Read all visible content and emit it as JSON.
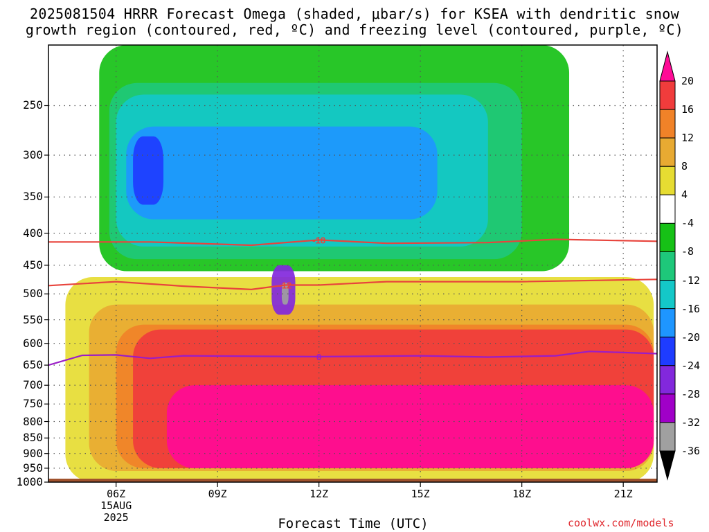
{
  "title": {
    "line1": "2025081504 HRRR Forecast Omega (shaded, μbar/s) for KSEA with dendritic snow",
    "line2": "growth region (contoured, red, ºC) and freezing level (contoured, purple, ºC)"
  },
  "xlabel": "Forecast Time (UTC)",
  "credit": "coolwx.com/models",
  "chart_data": {
    "type": "heatmap",
    "title": "2025081504 HRRR Forecast Omega (shaded, μbar/s) for KSEA with dendritic snow growth region (contoured, red, ºC) and freezing level (contoured, purple, ºC)",
    "xlabel": "Forecast Time (UTC)",
    "ylabel": "",
    "y_scale": "log-pressure",
    "y_ticks": [
      250,
      300,
      350,
      400,
      450,
      500,
      550,
      600,
      650,
      700,
      750,
      800,
      850,
      900,
      950,
      1000
    ],
    "y_range_hpa": [
      1000,
      200
    ],
    "x_ticks": [
      "06Z",
      "09Z",
      "12Z",
      "15Z",
      "18Z",
      "21Z"
    ],
    "x_tick_hours": [
      6,
      9,
      12,
      15,
      18,
      21
    ],
    "x_range_hours": [
      4,
      22
    ],
    "date_label": [
      "15AUG",
      "2025"
    ],
    "colorbar_ticks": [
      20,
      16,
      12,
      8,
      4,
      -4,
      -8,
      -12,
      -16,
      -20,
      -24,
      -28,
      -32,
      -36
    ],
    "colorbar_colors": [
      "#ff0a96",
      "#f03c3c",
      "#f08228",
      "#e8aa32",
      "#e6dc32",
      "#ffffff",
      "#16c116",
      "#1ec87a",
      "#14c8c8",
      "#1e96ff",
      "#1e3cff",
      "#8228dc",
      "#a000c8",
      "#a0a0a0",
      "#000000"
    ],
    "contours": [
      {
        "label": "-18",
        "color": "#e8443c",
        "points": [
          [
            4,
            413
          ],
          [
            7,
            413
          ],
          [
            10,
            418
          ],
          [
            11,
            414
          ],
          [
            12,
            410
          ],
          [
            14,
            415
          ],
          [
            17,
            414
          ],
          [
            19,
            409
          ],
          [
            22,
            412
          ]
        ]
      },
      {
        "label": "-12",
        "color": "#e8443c",
        "points": [
          [
            4,
            485
          ],
          [
            6,
            478
          ],
          [
            8,
            486
          ],
          [
            10,
            492
          ],
          [
            11,
            484
          ],
          [
            12,
            484
          ],
          [
            14,
            478
          ],
          [
            18,
            478
          ],
          [
            22,
            474
          ]
        ]
      },
      {
        "label": "0",
        "color": "#9a1cc8",
        "points": [
          [
            4,
            650
          ],
          [
            5,
            627
          ],
          [
            6,
            626
          ],
          [
            7,
            634
          ],
          [
            8,
            628
          ],
          [
            12,
            630
          ],
          [
            15,
            628
          ],
          [
            17,
            631
          ],
          [
            19,
            628
          ],
          [
            20,
            618
          ],
          [
            22,
            623
          ]
        ]
      }
    ],
    "shaded_regions": [
      {
        "level": 4,
        "hour_range": [
          4.5,
          21.9
        ],
        "p_range": [
          1000,
          470
        ]
      },
      {
        "level": 8,
        "hour_range": [
          5.2,
          21.9
        ],
        "p_range": [
          960,
          520
        ]
      },
      {
        "level": 12,
        "hour_range": [
          6.0,
          21.9
        ],
        "p_range": [
          950,
          560
        ]
      },
      {
        "level": 16,
        "hour_range": [
          6.5,
          21.9
        ],
        "p_range": [
          950,
          570
        ]
      },
      {
        "level": 20,
        "hour_range": [
          7.5,
          21.9
        ],
        "p_range": [
          950,
          700
        ]
      },
      {
        "level": -4,
        "hour_range": [
          5.5,
          19.4
        ],
        "p_range": [
          460,
          200
        ]
      },
      {
        "level": -8,
        "hour_range": [
          5.8,
          18.0
        ],
        "p_range": [
          440,
          230
        ]
      },
      {
        "level": -12,
        "hour_range": [
          6.0,
          17.0
        ],
        "p_range": [
          420,
          240
        ]
      },
      {
        "level": -16,
        "hour_range": [
          6.3,
          15.5
        ],
        "p_range": [
          380,
          270
        ]
      },
      {
        "level": -20,
        "hour_range": [
          6.5,
          7.4
        ],
        "p_range": [
          360,
          280
        ]
      },
      {
        "level": -24,
        "hour_range": [
          10.6,
          11.3
        ],
        "p_range": [
          540,
          450
        ]
      },
      {
        "level": -32,
        "hour_range": [
          10.9,
          11.1
        ],
        "p_range": [
          520,
          480
        ]
      }
    ]
  }
}
